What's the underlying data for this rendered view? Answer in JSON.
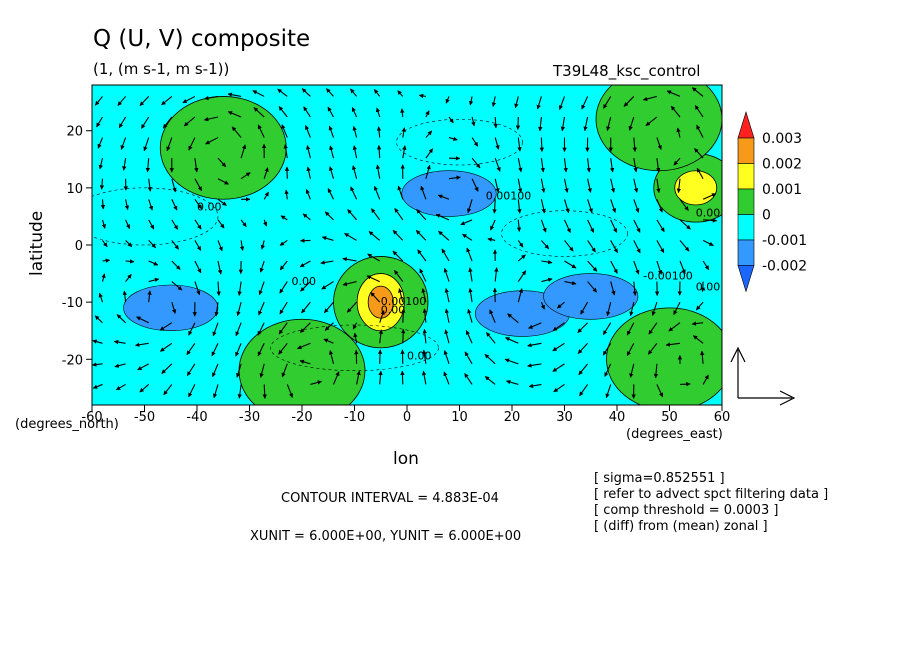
{
  "chart_data": {
    "type": "heatmap",
    "title": "Q (U, V) composite",
    "subtitle": "(1, (m s-1, m s-1))",
    "run_label": "T39L48_ksc_control",
    "xlabel": "lon",
    "ylabel": "latitude",
    "x_unit_label": "(degrees_east)",
    "y_unit_label": "(degrees_north)",
    "xlim": [
      -60,
      60
    ],
    "ylim": [
      -28,
      28
    ],
    "x_ticks": [
      "-60",
      "-50",
      "-40",
      "-30",
      "-20",
      "-10",
      "0",
      "10",
      "20",
      "30",
      "40",
      "50",
      "60"
    ],
    "y_ticks": [
      "20",
      "10",
      "0",
      "-10",
      "-20"
    ],
    "colorbar": {
      "levels": [
        "0.003",
        "0.002",
        "0.001",
        "0",
        "-0.001",
        "-0.002"
      ],
      "colors": [
        "#ff2020",
        "#f79a1a",
        "#ffff20",
        "#30cc30",
        "#00ffff",
        "#3399ff",
        "#1a66ff"
      ]
    },
    "contour_labels": [
      "0.00",
      "0.00100",
      "0.00",
      "-0.00100",
      "0.00",
      "0.00",
      "0.00100",
      "0.00",
      "0.00"
    ],
    "features": [
      {
        "kind": "positive",
        "lon": -5,
        "lat": -10,
        "peak": 0.0022
      },
      {
        "kind": "positive",
        "lon": 55,
        "lat": 10,
        "peak": 0.0012
      },
      {
        "kind": "positive",
        "lon": -35,
        "lat": 17,
        "peak": 0.0004
      },
      {
        "kind": "positive",
        "lon": 48,
        "lat": 22,
        "peak": 0.0004
      },
      {
        "kind": "positive",
        "lon": -20,
        "lat": -22,
        "peak": 0.0004
      },
      {
        "kind": "positive",
        "lon": 50,
        "lat": -20,
        "peak": 0.0004
      },
      {
        "kind": "negative",
        "lon": 8,
        "lat": 9,
        "peak": -0.0012
      },
      {
        "kind": "negative",
        "lon": -45,
        "lat": -11,
        "peak": -0.0012
      },
      {
        "kind": "negative",
        "lon": 22,
        "lat": -12,
        "peak": -0.0012
      },
      {
        "kind": "negative",
        "lon": 35,
        "lat": -9,
        "peak": -0.0011
      }
    ],
    "reference_vector": {
      "xunit": "6.000E+00",
      "yunit": "6.000E+00"
    },
    "contour_interval": "4.883E-04"
  },
  "footer": {
    "contour_interval_text": "CONTOUR INTERVAL = 4.883E-04",
    "unit_text": "XUNIT = 6.000E+00, YUNIT = 6.000E+00",
    "notes": [
      "[ sigma=0.852551 ]",
      "[ refer to advect spct filtering data ]",
      "[ comp threshold = 0.0003 ]",
      "[ (diff) from (mean) zonal ]"
    ]
  }
}
